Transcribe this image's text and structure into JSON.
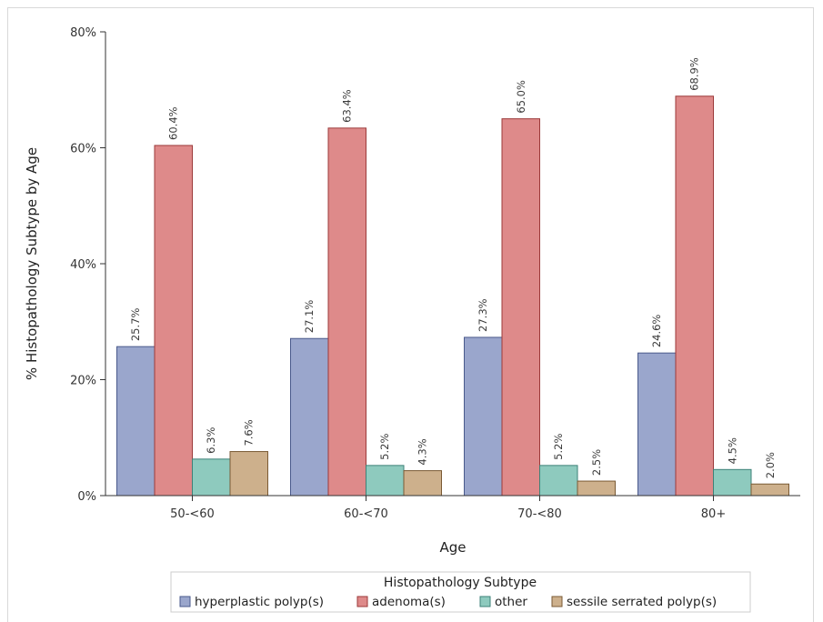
{
  "chart_data": {
    "type": "bar",
    "title": "",
    "xlabel": "Age",
    "ylabel": "% Histopathology Subtype by Age",
    "categories": [
      "50-<60",
      "60-<70",
      "70-<80",
      "80+"
    ],
    "ylim": [
      0,
      80
    ],
    "yticks": [
      0,
      20,
      40,
      60,
      80
    ],
    "ytick_labels": [
      "0%",
      "20%",
      "40%",
      "60%",
      "80%"
    ],
    "grid": false,
    "legend": {
      "title": "Histopathology Subtype",
      "placement": "bottom"
    },
    "series": [
      {
        "name": "hyperplastic polyp(s)",
        "color": "#9aa6cc",
        "stroke": "#4a5a8c",
        "values": [
          25.7,
          27.1,
          27.3,
          24.6
        ],
        "labels": [
          "25.7%",
          "27.1%",
          "27.3%",
          "24.6%"
        ]
      },
      {
        "name": "adenoma(s)",
        "color": "#de8a8a",
        "stroke": "#9c3a3a",
        "values": [
          60.4,
          63.4,
          65.0,
          68.9
        ],
        "labels": [
          "60.4%",
          "63.4%",
          "65.0%",
          "68.9%"
        ]
      },
      {
        "name": "other",
        "color": "#8ecabe",
        "stroke": "#3e8278",
        "values": [
          6.3,
          5.2,
          5.2,
          4.5
        ],
        "labels": [
          "6.3%",
          "5.2%",
          "5.2%",
          "4.5%"
        ]
      },
      {
        "name": "sessile serrated polyp(s)",
        "color": "#cdb08c",
        "stroke": "#7a5a34",
        "values": [
          7.6,
          4.3,
          2.5,
          2.0
        ],
        "labels": [
          "7.6%",
          "4.3%",
          "2.5%",
          "2.0%"
        ]
      }
    ]
  }
}
